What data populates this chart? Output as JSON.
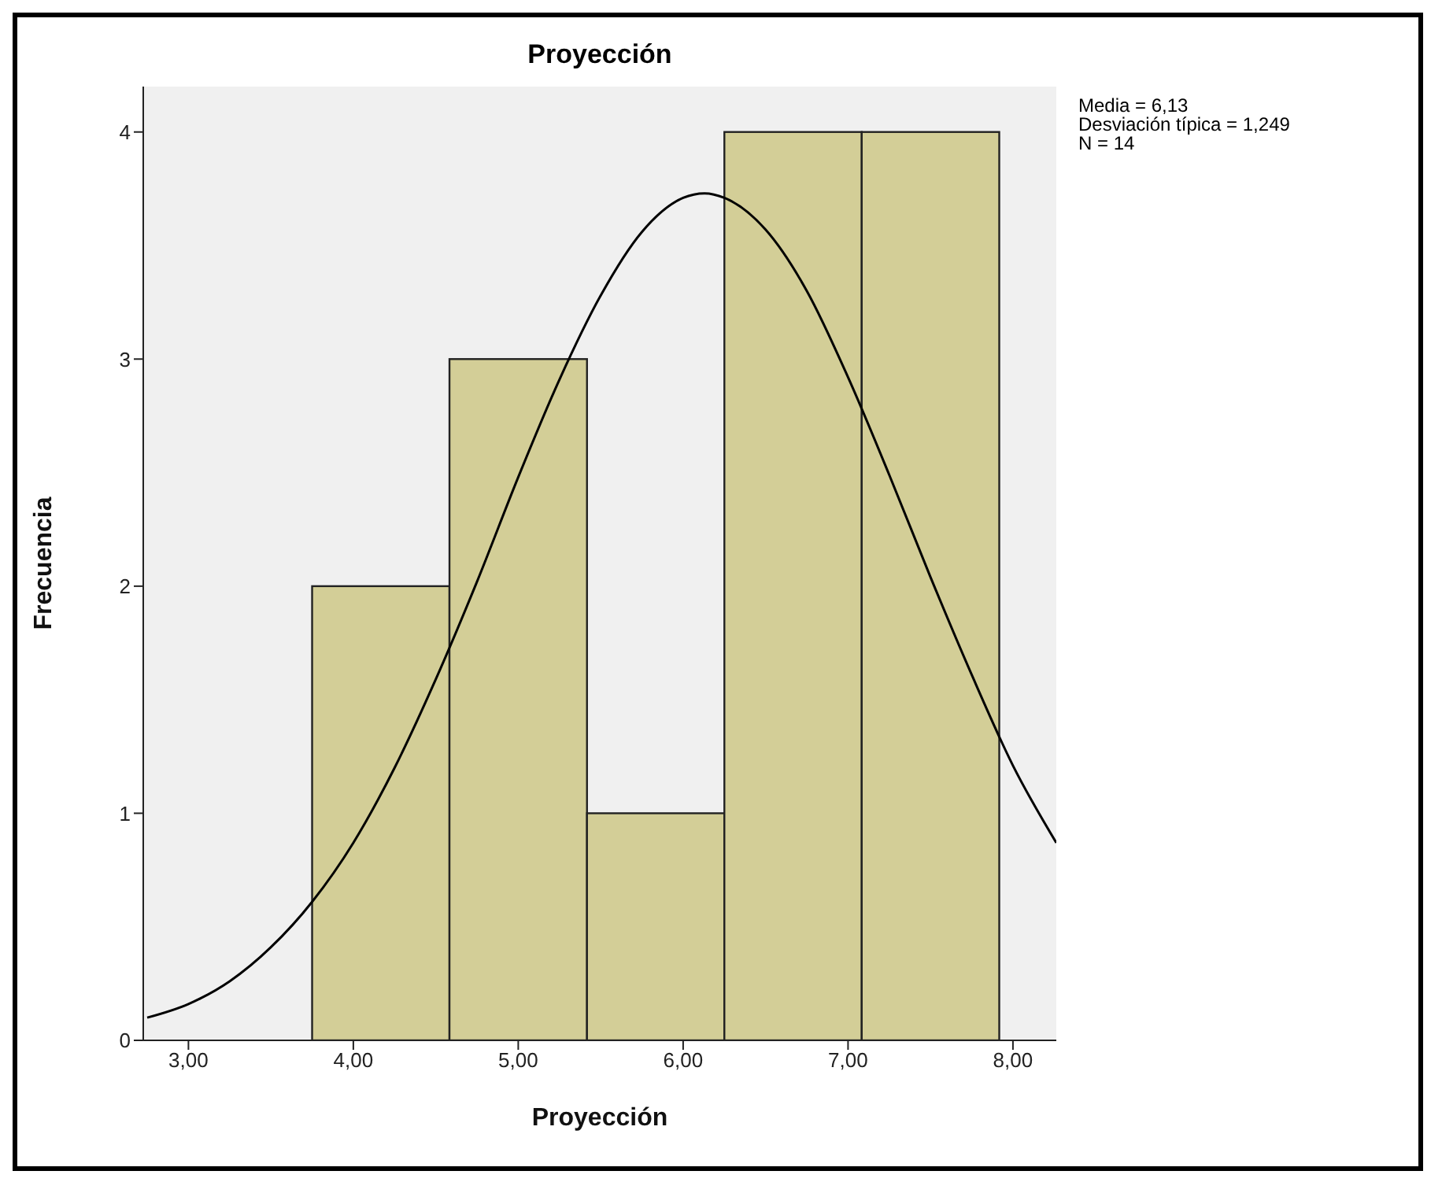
{
  "chart_data": {
    "type": "histogram",
    "title": "Proyección",
    "xlabel": "Proyección",
    "ylabel": "Frecuencia",
    "bins": [
      3.75,
      4.583,
      5.417,
      6.25,
      7.083,
      7.917
    ],
    "values": [
      2,
      3,
      1,
      4,
      4
    ],
    "color": "#d3ce97",
    "series": [
      {
        "type": "line",
        "color": "#000000",
        "x": [
          2.75,
          3,
          3.25,
          3.5,
          3.75,
          4,
          4.25,
          4.5,
          4.75,
          5,
          5.25,
          5.5,
          5.75,
          6,
          6.13,
          6.25,
          6.5,
          6.75,
          7,
          7.25,
          7.5,
          7.75,
          8,
          8.263
        ],
        "values": [
          0.1,
          0.16,
          0.26,
          0.41,
          0.61,
          0.87,
          1.2,
          1.59,
          2.02,
          2.48,
          2.91,
          3.28,
          3.56,
          3.71,
          3.73,
          3.71,
          3.57,
          3.3,
          2.92,
          2.49,
          2.04,
          1.61,
          1.21,
          0.87
        ]
      }
    ],
    "xlim": [
      2.726,
      8.263
    ],
    "xticks": [
      {
        "value": 3,
        "label": "3,00"
      },
      {
        "value": 4,
        "label": "4,00"
      },
      {
        "value": 5,
        "label": "5,00"
      },
      {
        "value": 6,
        "label": "6,00"
      },
      {
        "value": 7,
        "label": "7,00"
      },
      {
        "value": 8,
        "label": "8,00"
      }
    ],
    "ylim": [
      0,
      4.2
    ],
    "yticks": [
      0,
      1,
      2,
      3,
      4
    ],
    "grid": false,
    "annotations": [
      "Media = 6,13",
      "Desviación típica = 1,249",
      "N = 14"
    ]
  }
}
